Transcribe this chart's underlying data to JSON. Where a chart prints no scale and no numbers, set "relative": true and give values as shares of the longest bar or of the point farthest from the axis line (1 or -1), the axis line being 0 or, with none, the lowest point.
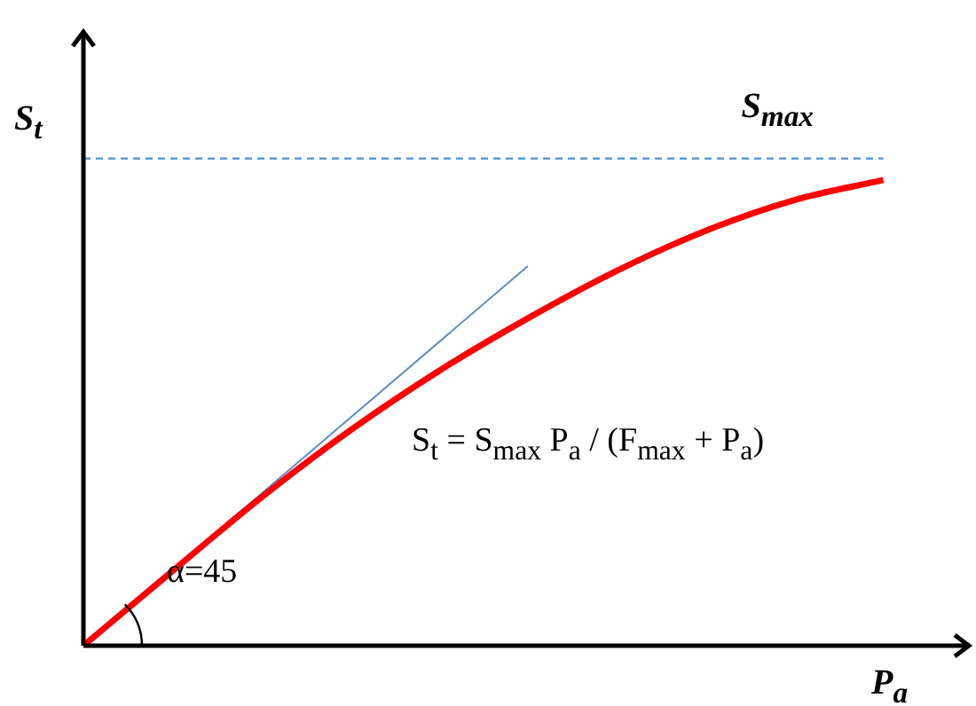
{
  "chart_data": {
    "type": "line",
    "relative": true,
    "xlabel": "P$_{a}$",
    "ylabel": "S$_{t}$",
    "grid": false,
    "legend": false,
    "marker": "none",
    "categories": [
      null,
      null,
      null,
      null,
      null,
      null,
      null,
      null,
      null,
      null
    ],
    "series": [
      {
        "color": "#ff0000",
        "values": [
          0,
          0.16,
          0.318,
          0.462,
          0.59,
          0.703,
          0.805,
          0.891,
          0.957,
          1
        ]
      },
      {
        "color": "#5b8ec9",
        "values": [
          0,
          null,
          null,
          null,
          null,
          0.815,
          null,
          null,
          null,
          null
        ]
      }
    ],
    "ref_lines": [
      {
        "axis": "y",
        "value": 1.046,
        "label": "S$_{max}$",
        "color": "#5b9bd5",
        "line_style": "dashed"
      }
    ],
    "annotations": [
      "S$_{t}$ = S$_{max}$ P$_{a}$ / (F$_{max}$ + P$_{a}$)",
      "α=45"
    ]
  }
}
